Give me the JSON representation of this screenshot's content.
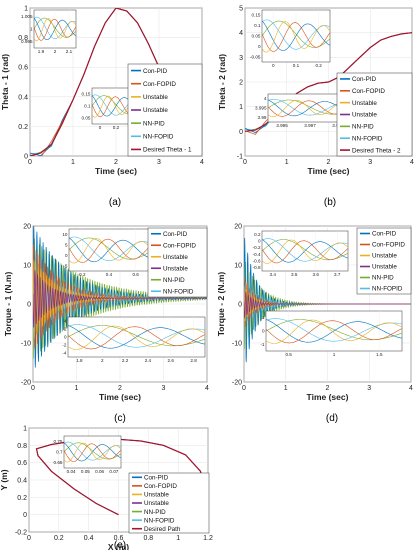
{
  "colors": {
    "con_pid": "#0072BD",
    "con_fopid": "#D95319",
    "unstable_1": "#EDB120",
    "unstable_2": "#7E2F8E",
    "nn_pid": "#77AC30",
    "nn_fopid": "#4DBEEE",
    "desired": "#A2142F"
  },
  "chart_data": [
    {
      "id": "a",
      "type": "line",
      "panel_label": "(a)",
      "xlabel": "Time (sec)",
      "ylabel": "Theta - 1  (rad)",
      "xlim": [
        0,
        4
      ],
      "ylim": [
        0,
        1
      ],
      "xticks": [
        "0",
        "1",
        "2",
        "3",
        "4"
      ],
      "yticks": [
        "0",
        "0.2",
        "0.4",
        "0.6",
        "0.8",
        "1"
      ],
      "grid": true,
      "legend_position": "right",
      "legend": [
        "Con-PID",
        "Con-FOPID",
        "Unstable",
        "Unstable",
        "NN-PID",
        "NN-FOPID",
        "Desired Theta - 1"
      ],
      "desired_points": [
        [
          0,
          0
        ],
        [
          0.25,
          0.02
        ],
        [
          0.5,
          0.08
        ],
        [
          0.75,
          0.22
        ],
        [
          1.0,
          0.38
        ],
        [
          1.25,
          0.55
        ],
        [
          1.5,
          0.74
        ],
        [
          1.75,
          0.9
        ],
        [
          2.0,
          1.0
        ],
        [
          2.25,
          0.98
        ],
        [
          2.5,
          0.9
        ],
        [
          2.75,
          0.76
        ],
        [
          3.0,
          0.6
        ],
        [
          3.25,
          0.43
        ],
        [
          3.5,
          0.27
        ],
        [
          3.75,
          0.12
        ],
        [
          4.0,
          0.02
        ]
      ],
      "insets": [
        {
          "xticks": [
            "1.9",
            "2",
            "2.1"
          ],
          "yticks": [
            "1.005",
            "1",
            "0.995"
          ]
        },
        {
          "xticks": [
            "0",
            "0.2",
            "0.4"
          ],
          "yticks": [
            "0.15",
            "0.1",
            "0.05"
          ]
        }
      ]
    },
    {
      "id": "b",
      "type": "line",
      "panel_label": "(b)",
      "xlabel": "Time (sec)",
      "ylabel": "Theta - 2  (rad)",
      "xlim": [
        0,
        4
      ],
      "ylim": [
        -1,
        5
      ],
      "xticks": [
        "0",
        "1",
        "2",
        "3",
        "4"
      ],
      "yticks": [
        "-1",
        "0",
        "1",
        "2",
        "3",
        "4",
        "5"
      ],
      "grid": true,
      "legend_position": "bottom-right",
      "legend": [
        "Con-PID",
        "Con-FOPID",
        "Unstable",
        "Unstable",
        "NN-PID",
        "NN-FOPID",
        "Desired Theta - 2"
      ],
      "desired_points": [
        [
          0,
          0
        ],
        [
          0.25,
          0.05
        ],
        [
          0.5,
          0.3
        ],
        [
          0.75,
          0.7
        ],
        [
          1.0,
          1.2
        ],
        [
          1.25,
          1.55
        ],
        [
          1.5,
          1.8
        ],
        [
          1.75,
          1.95
        ],
        [
          2.0,
          2.0
        ],
        [
          2.25,
          2.2
        ],
        [
          2.5,
          2.6
        ],
        [
          2.75,
          3.0
        ],
        [
          3.0,
          3.4
        ],
        [
          3.25,
          3.7
        ],
        [
          3.5,
          3.85
        ],
        [
          3.75,
          3.95
        ],
        [
          4.0,
          4.0
        ]
      ],
      "insets": [
        {
          "xticks": [
            "0",
            "0.1",
            "0.2"
          ],
          "yticks": [
            "0.15",
            "0.1",
            "0.05",
            "0",
            "-0.05"
          ]
        },
        {
          "xticks": [
            "3.995",
            "3.997",
            "3.999"
          ],
          "yticks": [
            "4",
            "3.995",
            "3.99"
          ]
        }
      ]
    },
    {
      "id": "c",
      "type": "line",
      "panel_label": "(c)",
      "xlabel": "Time (sec)",
      "ylabel": "Torque - 1  (N.m)",
      "xlim": [
        0,
        4
      ],
      "ylim": [
        -20,
        20
      ],
      "xticks": [
        "0",
        "1",
        "2",
        "3",
        "4"
      ],
      "yticks": [
        "-20",
        "-10",
        "0",
        "10",
        "20"
      ],
      "grid": true,
      "legend_position": "top-right",
      "legend": [
        "Con-PID",
        "Con-FOPID",
        "Unstable",
        "Unstable",
        "NN-PID",
        "NN-FOPID"
      ],
      "insets": [
        {
          "xticks": [
            "0.2",
            "0.4",
            "0.6"
          ],
          "yticks": [
            "10",
            "5",
            "0",
            "-5"
          ]
        },
        {
          "xticks": [
            "1.8",
            "2",
            "2.2",
            "2.4",
            "2.6",
            "2.8"
          ],
          "yticks": [
            "4",
            "2",
            "0",
            "-2",
            "-4"
          ]
        }
      ]
    },
    {
      "id": "d",
      "type": "line",
      "panel_label": "(d)",
      "xlabel": "Time (sec)",
      "ylabel": "Torque - 2  (N.m)",
      "xlim": [
        0,
        4
      ],
      "ylim": [
        -20,
        20
      ],
      "xticks": [
        "0",
        "1",
        "2",
        "3",
        "4"
      ],
      "yticks": [
        "-20",
        "-10",
        "0",
        "10",
        "20"
      ],
      "grid": true,
      "legend_position": "top-right",
      "legend": [
        "Con-PID",
        "Con-FOPID",
        "Unstable",
        "Unstable",
        "NN-PID",
        "NN-FOPID"
      ],
      "insets": [
        {
          "xticks": [
            "3.4",
            "3.5",
            "3.6",
            "3.7"
          ],
          "yticks": [
            "0.2",
            "0",
            "-0.2",
            "-0.4",
            "-0.6",
            "-0.8"
          ]
        },
        {
          "xticks": [
            "0.5",
            "1",
            "1.5"
          ],
          "yticks": [
            "1",
            "0",
            "-1"
          ]
        }
      ]
    },
    {
      "id": "e",
      "type": "line",
      "panel_label": "(e)",
      "xlabel": "X (m)",
      "ylabel": "Y (m)",
      "xlim": [
        0,
        1.2
      ],
      "ylim": [
        -0.2,
        1
      ],
      "xticks": [
        "0",
        "0.2",
        "0.4",
        "0.6",
        "0.8",
        "1",
        "1.2"
      ],
      "yticks": [
        "-0.2",
        "0",
        "0.2",
        "0.4",
        "0.6",
        "0.8",
        "1"
      ],
      "grid": true,
      "legend_position": "bottom-right",
      "legend": [
        "Con-PID",
        "Con-FOPID",
        "Unstable",
        "Unstable",
        "NN-PID",
        "NN-FOPID",
        "Desired Path"
      ],
      "desired_points": [
        [
          0.6,
          0
        ],
        [
          0.45,
          0.13
        ],
        [
          0.3,
          0.3
        ],
        [
          0.15,
          0.5
        ],
        [
          0.06,
          0.68
        ],
        [
          0.05,
          0.76
        ],
        [
          0.15,
          0.81
        ],
        [
          0.3,
          0.85
        ],
        [
          0.45,
          0.87
        ],
        [
          0.6,
          0.87
        ],
        [
          0.75,
          0.85
        ],
        [
          0.9,
          0.8
        ],
        [
          1.05,
          0.69
        ],
        [
          1.15,
          0.5
        ],
        [
          1.19,
          0.25
        ],
        [
          1.2,
          0
        ]
      ],
      "insets": [
        {
          "xticks": [
            "0.04",
            "0.05",
            "0.06",
            "0.07"
          ],
          "yticks": [
            "0.75",
            "0.7",
            "0.65"
          ]
        }
      ]
    }
  ]
}
